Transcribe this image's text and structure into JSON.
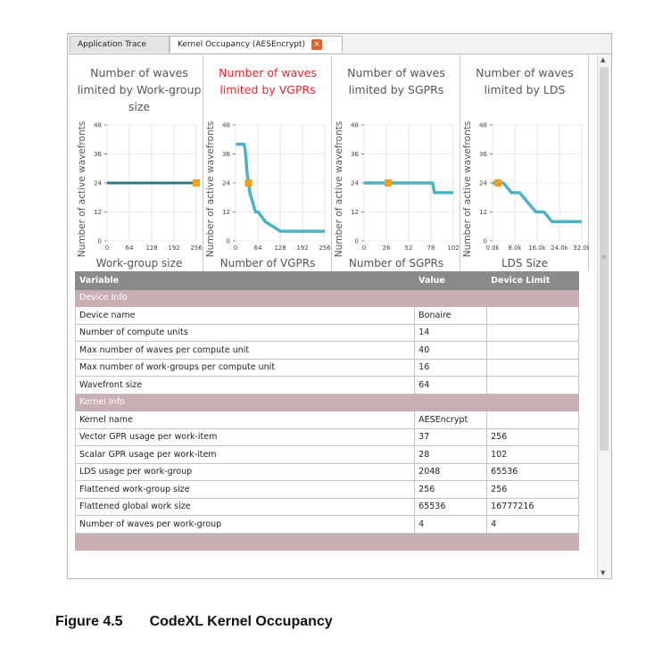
{
  "tabs": [
    {
      "label": "Application Trace",
      "active": false
    },
    {
      "label": "Kernel Occupancy (AESEncrypt)",
      "active": true
    }
  ],
  "close_glyph": "×",
  "scroll": {
    "up": "▲",
    "down": "▼",
    "mark": "≡"
  },
  "accent_color": "#4bb3c4",
  "highlight_color": "#f0a020",
  "limit_title_color": "#e8222a",
  "chart_data": [
    {
      "type": "line",
      "title": "Number of waves limited by Work-group size",
      "xlabel": "Work-group size",
      "ylabel": "Number of active wavefronts",
      "xlim": [
        0,
        256
      ],
      "ylim": [
        0,
        48
      ],
      "x_ticks": [
        "0",
        "64",
        "128",
        "192",
        "256"
      ],
      "y_ticks": [
        "0",
        "12",
        "24",
        "36",
        "48"
      ],
      "series": [
        {
          "x": [
            0,
            256
          ],
          "y": [
            24,
            24
          ]
        }
      ],
      "current": {
        "x": 256,
        "y": 24
      },
      "limiting": false
    },
    {
      "type": "line",
      "title": "Number of waves limited by VGPRs",
      "xlabel": "Number of VGPRs",
      "ylabel": "Number of active wavefronts",
      "xlim": [
        0,
        256
      ],
      "ylim": [
        0,
        48
      ],
      "x_ticks": [
        "0",
        "64",
        "128",
        "192",
        "256"
      ],
      "y_ticks": [
        "0",
        "12",
        "24",
        "36",
        "48"
      ],
      "series": [
        {
          "x": [
            1,
            25,
            29,
            33,
            37,
            41,
            49,
            57,
            65,
            85,
            129,
            256
          ],
          "y": [
            40,
            40,
            36,
            28,
            24,
            20,
            16,
            12,
            12,
            8,
            4,
            4
          ]
        }
      ],
      "current": {
        "x": 37,
        "y": 24
      },
      "limiting": true
    },
    {
      "type": "line",
      "title": "Number of waves limited by SGPRs",
      "xlabel": "Number of SGPRs",
      "ylabel": "Number of active wavefronts",
      "xlim": [
        0,
        104
      ],
      "ylim": [
        0,
        48
      ],
      "x_ticks": [
        "0",
        "26",
        "52",
        "78",
        "102"
      ],
      "y_ticks": [
        "0",
        "12",
        "24",
        "36",
        "48"
      ],
      "series": [
        {
          "x": [
            0,
            80,
            82,
            104
          ],
          "y": [
            24,
            24,
            20,
            20
          ]
        }
      ],
      "current": {
        "x": 28,
        "y": 24
      },
      "limiting": false
    },
    {
      "type": "line",
      "title": "Number of waves limited by LDS",
      "xlabel": "LDS Size",
      "ylabel": "Number of active wavefronts",
      "xlim": [
        0,
        33000
      ],
      "ylim": [
        0,
        48
      ],
      "x_ticks": [
        "0.0k",
        "8.0k",
        "16.0k",
        "24.0k",
        "32.0k"
      ],
      "y_ticks": [
        "0",
        "12",
        "24",
        "36",
        "48"
      ],
      "series": [
        {
          "x": [
            0,
            4000,
            7000,
            10000,
            13000,
            16000,
            19000,
            22000,
            33000
          ],
          "y": [
            24,
            24,
            20,
            20,
            16,
            12,
            12,
            8,
            8
          ]
        }
      ],
      "current": {
        "x": 2048,
        "y": 24
      },
      "limiting": false
    }
  ],
  "table": {
    "headers": [
      "Variable",
      "Value",
      "Device Limit"
    ],
    "groups": [
      {
        "name": "Device Info",
        "rows": [
          [
            "Device name",
            "Bonaire",
            ""
          ],
          [
            "Number of compute units",
            "14",
            ""
          ],
          [
            "Max number of waves per compute unit",
            "40",
            ""
          ],
          [
            "Max number of work-groups per compute unit",
            "16",
            ""
          ],
          [
            "Wavefront size",
            "64",
            ""
          ]
        ]
      },
      {
        "name": "Kernel Info",
        "rows": [
          [
            "Kernel name",
            "AESEncrypt",
            ""
          ],
          [
            "Vector GPR usage per work-item",
            "37",
            "256"
          ],
          [
            "Scalar GPR usage per work-item",
            "28",
            "102"
          ],
          [
            "LDS usage per work-group",
            "2048",
            "65536"
          ],
          [
            "Flattened work-group size",
            "256",
            "256"
          ],
          [
            "Flattened global work size",
            "65536",
            "16777216"
          ],
          [
            "Number of waves per work-group",
            "4",
            "4"
          ]
        ]
      }
    ]
  },
  "caption": {
    "number": "Figure 4.5",
    "text": "CodeXL Kernel Occupancy"
  }
}
